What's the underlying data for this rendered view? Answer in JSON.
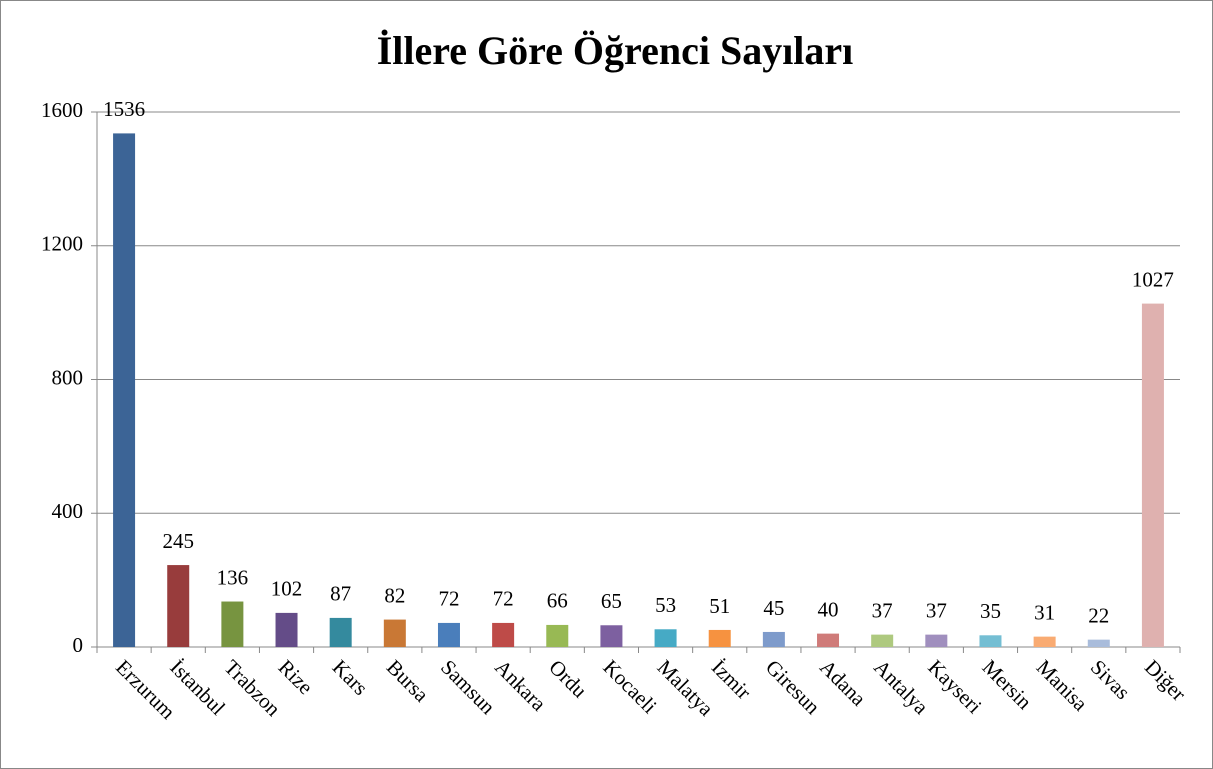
{
  "chart_data": {
    "type": "bar",
    "title": "İllere Göre Öğrenci Sayıları",
    "categories": [
      "Erzurum",
      "İstanbul",
      "Trabzon",
      "Rize",
      "Kars",
      "Bursa",
      "Samsun",
      "Ankara",
      "Ordu",
      "Kocaeli",
      "Malatya",
      "İzmir",
      "Giresun",
      "Adana",
      "Antalya",
      "Kayseri",
      "Mersin",
      "Manisa",
      "Sivas",
      "Diğer"
    ],
    "values": [
      1536,
      245,
      136,
      102,
      87,
      82,
      72,
      72,
      66,
      65,
      53,
      51,
      45,
      40,
      37,
      37,
      35,
      31,
      22,
      1027
    ],
    "colors": [
      "#3c6496",
      "#983c3c",
      "#779440",
      "#644c88",
      "#348a9e",
      "#c97835",
      "#4a7ebb",
      "#be4b48",
      "#98b954",
      "#7d60a0",
      "#46aac5",
      "#f69240",
      "#7e9bcb",
      "#cf7b79",
      "#aec97f",
      "#a08fbe",
      "#74bed3",
      "#f9ab72",
      "#a9bcdb",
      "#dfb1af"
    ],
    "ylim": [
      0,
      1600
    ],
    "yticks": [
      0,
      400,
      800,
      1200,
      1600
    ],
    "grid": true
  }
}
